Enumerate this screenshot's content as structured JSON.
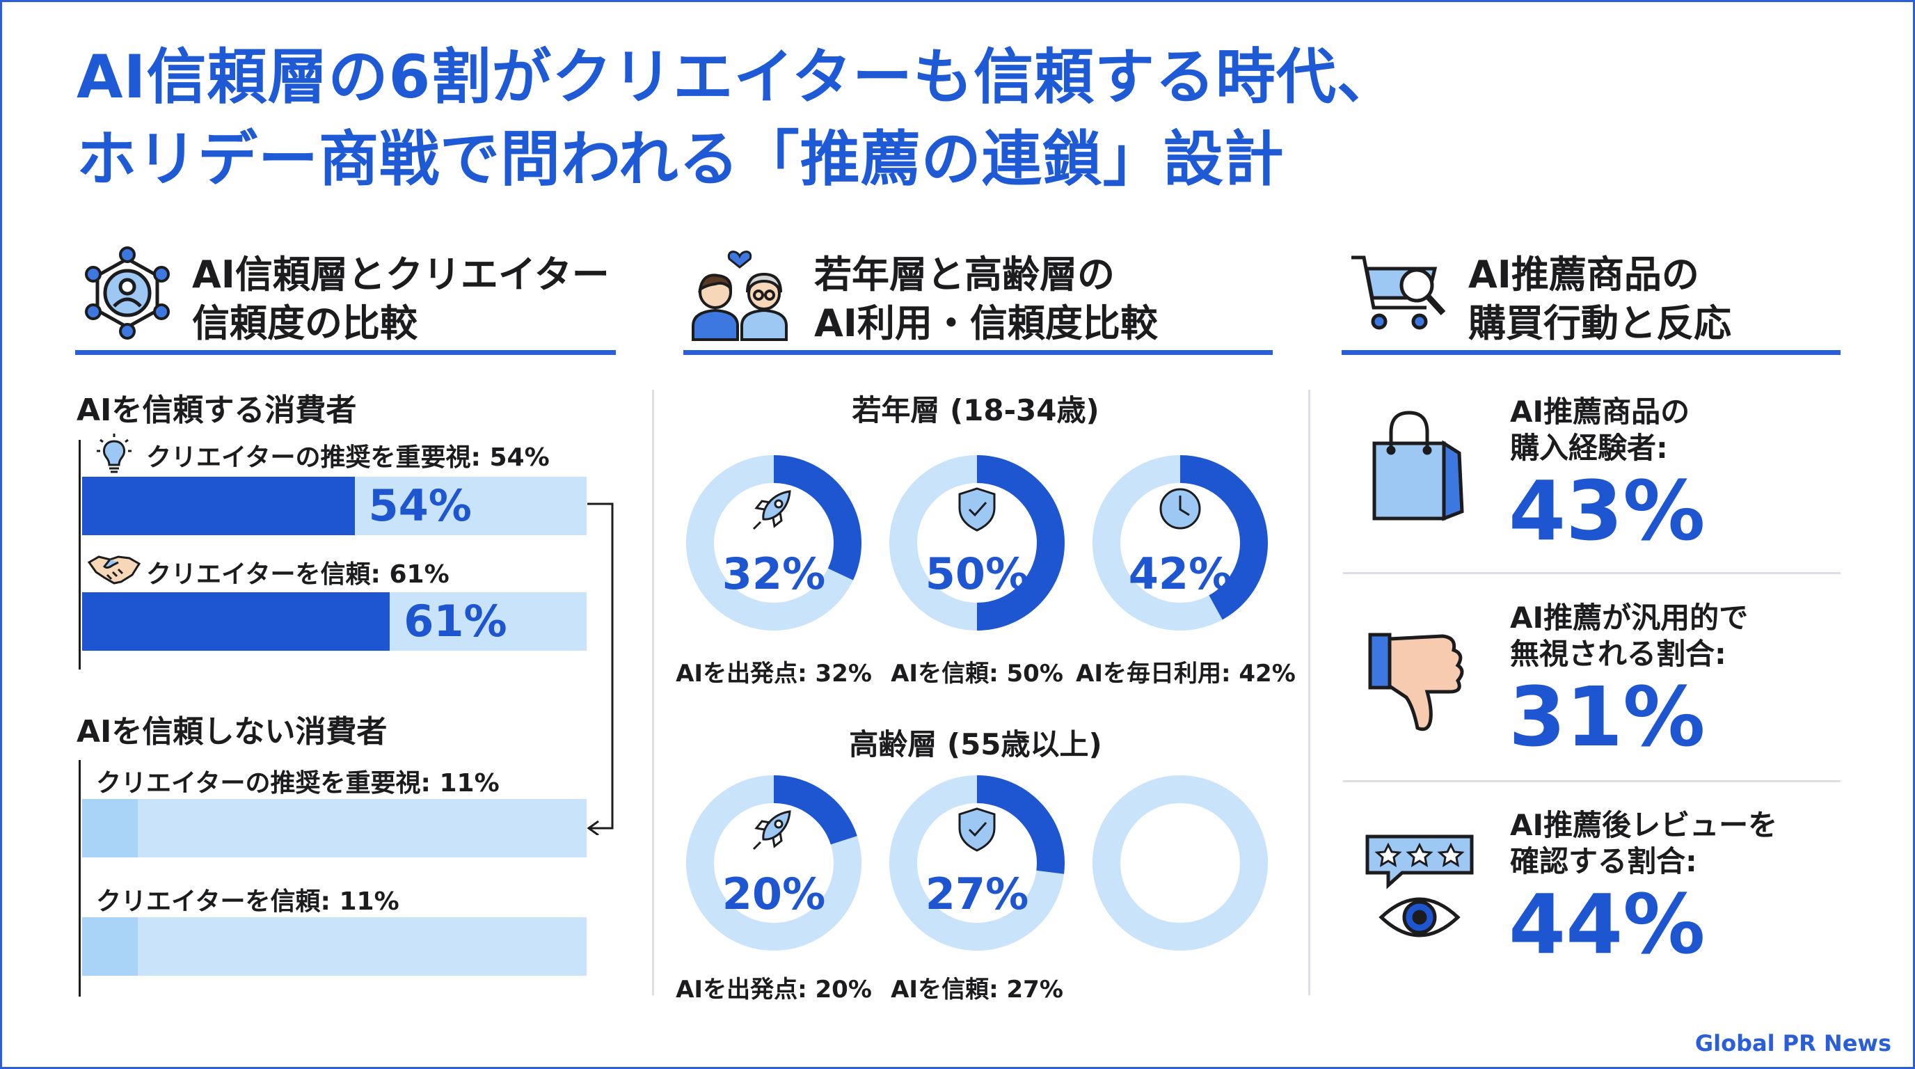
{
  "title": {
    "line1": "AI信頼層の6割がクリエイターも信頼する時代、",
    "line2": "ホリデー商戦で問われる「推薦の連鎖」設計"
  },
  "colors": {
    "accent": "#1e56d2",
    "light": "#c9e3fa",
    "title": "#1e5ad6"
  },
  "sections": {
    "left": {
      "line1": "AI信頼層とクリエイター",
      "line2": "信頼度の比較",
      "icon": "network-person-icon"
    },
    "middle": {
      "line1": "若年層と高齢層の",
      "line2": "AI利用・信頼度比較",
      "icon": "two-people-heart-icon"
    },
    "right": {
      "line1": "AI推薦商品の",
      "line2": "購買行動と反応",
      "icon": "cart-magnifier-icon"
    }
  },
  "left": {
    "trust_group": "AIを信頼する消費者",
    "distrust_group": "AIを信頼しない消費者",
    "trust_bars": [
      {
        "label": "クリエイターの推奨を重要視: 54%",
        "value_label": "54%",
        "icon": "lightbulb-icon"
      },
      {
        "label": "クリエイターを信頼: 61%",
        "value_label": "61%",
        "icon": "handshake-icon"
      }
    ],
    "distrust_bars": [
      {
        "label": "クリエイターの推奨を重要視: 11%"
      },
      {
        "label": "クリエイターを信頼: 11%"
      }
    ]
  },
  "middle": {
    "young_title": "若年層 (18-34歳)",
    "senior_title": "高齢層 (55歳以上)",
    "young": [
      {
        "value_label": "32%",
        "caption": "AIを出発点: 32%",
        "icon": "rocket-icon"
      },
      {
        "value_label": "50%",
        "caption": "AIを信頼: 50%",
        "icon": "shield-check-icon"
      },
      {
        "value_label": "42%",
        "caption": "AIを毎日利用: 42%",
        "icon": "clock-icon"
      }
    ],
    "senior": [
      {
        "value_label": "20%",
        "caption": "AIを出発点: 20%",
        "icon": "rocket-icon"
      },
      {
        "value_label": "27%",
        "caption": "AIを信頼: 27%",
        "icon": "shield-check-icon"
      }
    ]
  },
  "right": {
    "stats": [
      {
        "line1": "AI推薦商品の",
        "line2": "購入経験者:",
        "value": "43%",
        "icon": "shopping-bag-icon"
      },
      {
        "line1": "AI推薦が汎用的で",
        "line2": "無視される割合:",
        "value": "31%",
        "icon": "thumbs-down-icon"
      },
      {
        "line1": "AI推薦後レビューを",
        "line2": "確認する割合:",
        "value": "44%",
        "icon": "review-eye-icon"
      }
    ]
  },
  "credit": "Global PR News",
  "chart_data": [
    {
      "type": "bar",
      "orientation": "horizontal",
      "categories": [
        "クリエイターの推奨を重要視",
        "クリエイターを信頼"
      ],
      "series": [
        {
          "name": "AIを信頼する消費者",
          "values": [
            54,
            61
          ]
        },
        {
          "name": "AIを信頼しない消費者",
          "values": [
            11,
            11
          ]
        }
      ],
      "xlim": [
        0,
        100
      ]
    },
    {
      "type": "pie",
      "style": "donut",
      "categories": [
        "AIを出発点",
        "AIを信頼",
        "AIを毎日利用"
      ],
      "series": [
        {
          "name": "若年層 (18-34歳)",
          "values": [
            32,
            50,
            42
          ]
        },
        {
          "name": "高齢層 (55歳以上)",
          "values": [
            20,
            27,
            null
          ]
        }
      ]
    },
    {
      "type": "table",
      "rows": [
        {
          "label": "AI推薦商品の購入経験者",
          "value": 43
        },
        {
          "label": "AI推薦が汎用的で無視される割合",
          "value": 31
        },
        {
          "label": "AI推薦後レビューを確認する割合",
          "value": 44
        }
      ]
    }
  ]
}
